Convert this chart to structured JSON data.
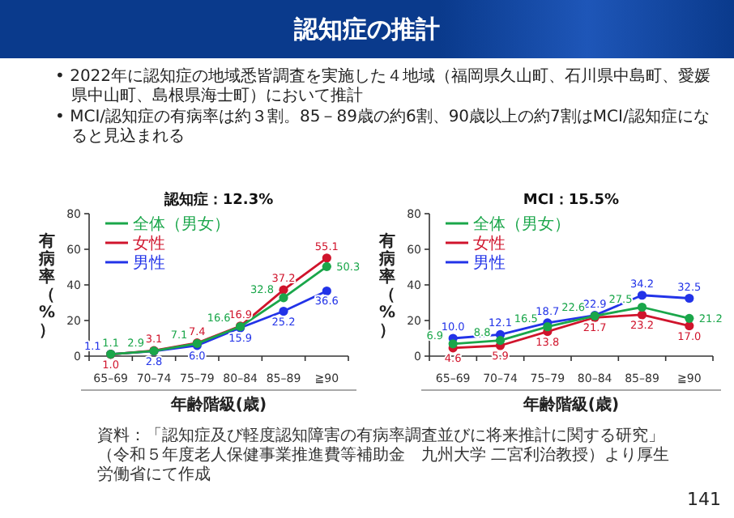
{
  "chart_data": [
    {
      "type": "line",
      "title": "認知症：12.3%",
      "xlabel": "年齢階級(歳)",
      "ylabel": "有病率（%）",
      "categories": [
        "65–69",
        "70–74",
        "75–79",
        "80–84",
        "85–89",
        "≧90"
      ],
      "ylim": [
        0,
        80
      ],
      "yticks": [
        0,
        20,
        40,
        60,
        80
      ],
      "grid": false,
      "legend": "top left",
      "marker": "circle",
      "line_style": "solid",
      "annotations": [
        "認知症の推計",
        "• 2022年に認知症の地域悉皆調査を実施した４地域（福岡県久山町、石川県中島町、愛媛県中山町、島根県海士町）において推計",
        "• MCI/認知症の有病率は約３割。85－89歳の約6割、90歳以上の約7割はMCI/認知症になると見込まれる"
      ],
      "series": [
        {
          "name": "全体（男女）",
          "color": "#1aa64a",
          "values": [
            1.1,
            2.9,
            7.1,
            16.6,
            32.8,
            50.3
          ],
          "value_labels": [
            "1.1",
            "2.9",
            "7.1",
            "16.6",
            "32.8",
            "50.3"
          ]
        },
        {
          "name": "女性",
          "color": "#d0142c",
          "values": [
            1.0,
            3.1,
            7.4,
            16.9,
            37.2,
            55.1
          ],
          "value_labels": [
            "1.0",
            "3.1",
            "7.4",
            "16.9",
            "37.2",
            "55.1"
          ]
        },
        {
          "name": "男性",
          "color": "#2233e8",
          "values": [
            1.1,
            2.8,
            6.0,
            15.9,
            25.2,
            36.6
          ],
          "value_labels": [
            "1.1",
            "2.8",
            "6.0",
            "15.9",
            "25.2",
            "36.6"
          ]
        }
      ]
    },
    {
      "type": "line",
      "title": "MCI：15.5%",
      "xlabel": "年齢階級(歳)",
      "ylabel": "有病率（%）",
      "categories": [
        "65–69",
        "70–74",
        "75–79",
        "80–84",
        "85–89",
        "≧90"
      ],
      "ylim": [
        0,
        80
      ],
      "yticks": [
        0,
        20,
        40,
        60,
        80
      ],
      "grid": false,
      "legend": "top left",
      "marker": "circle",
      "line_style": "solid",
      "annotations": [
        "資料：「認知症及び軽度認知障害の有病率調査並びに将来推計に関する研究」（令和５年度老人保健事業推進費等補助金　九州大学 二宮利治教授）より厚生労働省にて作成",
        "141"
      ],
      "series": [
        {
          "name": "全体（男女）",
          "color": "#1aa64a",
          "values": [
            6.9,
            8.8,
            16.5,
            22.6,
            27.5,
            21.2
          ],
          "value_labels": [
            "6.9",
            "8.8",
            "16.5",
            "22.6",
            "27.5",
            "21.2"
          ]
        },
        {
          "name": "女性",
          "color": "#d0142c",
          "values": [
            4.6,
            5.9,
            13.8,
            21.7,
            23.2,
            17.0
          ],
          "value_labels": [
            "4.6",
            "5.9",
            "13.8",
            "21.7",
            "23.2",
            "17.0"
          ]
        },
        {
          "name": "男性",
          "color": "#2233e8",
          "values": [
            10.0,
            12.1,
            18.7,
            22.9,
            34.2,
            32.5
          ],
          "value_labels": [
            "10.0",
            "12.1",
            "18.7",
            "22.9",
            "34.2",
            "32.5"
          ]
        }
      ]
    }
  ]
}
